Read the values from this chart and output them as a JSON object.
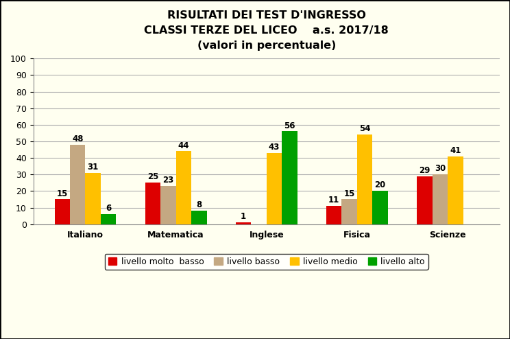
{
  "title_line1": "RISULTATI DEI TEST D'INGRESSO",
  "title_line2": "CLASSI TERZE DEL LICEO    a.s. 2017/18",
  "title_line3": "(valori in percentuale)",
  "categories": [
    "Italiano",
    "Matematica",
    "Inglese",
    "Fisica",
    "Scienze"
  ],
  "series": {
    "livello molto  basso": [
      15,
      25,
      1,
      11,
      29
    ],
    "livello basso": [
      48,
      23,
      0,
      15,
      30
    ],
    "livello medio": [
      31,
      44,
      43,
      54,
      41
    ],
    "livello alto": [
      6,
      8,
      56,
      20,
      0
    ]
  },
  "colors": {
    "livello molto  basso": "#dd0000",
    "livello basso": "#c4a882",
    "livello medio": "#ffc000",
    "livello alto": "#00a000"
  },
  "ylim": [
    0,
    100
  ],
  "yticks": [
    0,
    10,
    20,
    30,
    40,
    50,
    60,
    70,
    80,
    90,
    100
  ],
  "bar_width": 0.17,
  "background_color": "#fffff0",
  "plot_bg_color": "#fffff0",
  "grid_color": "#b0b0b0",
  "title_fontsize": 11.5,
  "label_fontsize": 8.5,
  "legend_fontsize": 9,
  "tick_fontsize": 9
}
